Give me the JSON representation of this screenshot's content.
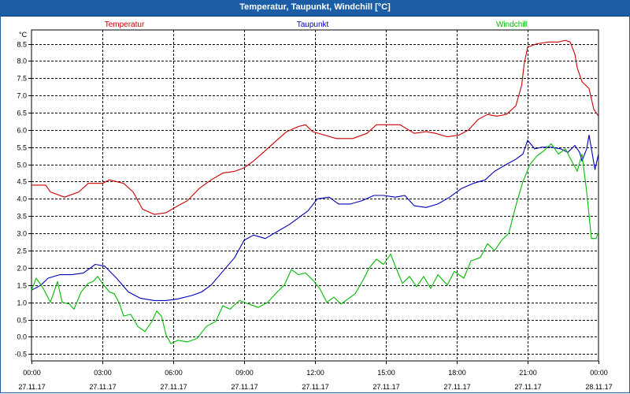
{
  "window": {
    "title": "Temperatur, Taupunkt, Windchill [°C]"
  },
  "chart_data": {
    "type": "line",
    "title": "Temperatur, Taupunkt, Windchill [°C]",
    "ylabel": "°C",
    "ylim": [
      -0.7,
      8.9
    ],
    "xlim_hours": [
      0,
      24
    ],
    "grid": true,
    "y_ticks": [
      "8.5",
      "8.0",
      "7.5",
      "7.0",
      "6.5",
      "6.0",
      "5.5",
      "5.0",
      "4.5",
      "4.0",
      "3.5",
      "3.0",
      "2.5",
      "2.0",
      "1.5",
      "1.0",
      "0.5",
      "0.0",
      "-0.5"
    ],
    "x_ticks": [
      {
        "time": "00:00",
        "date": "27.11.17"
      },
      {
        "time": "03:00",
        "date": "27.11.17"
      },
      {
        "time": "06:00",
        "date": "27.11.17"
      },
      {
        "time": "09:00",
        "date": "27.11.17"
      },
      {
        "time": "12:00",
        "date": "27.11.17"
      },
      {
        "time": "15:00",
        "date": "27.11.17"
      },
      {
        "time": "18:00",
        "date": "27.11.17"
      },
      {
        "time": "21:00",
        "date": "27.11.17"
      },
      {
        "time": "00:00",
        "date": "28.11.17"
      }
    ],
    "series": [
      {
        "name": "Temperatur",
        "color": "#cc0000",
        "points": [
          [
            0,
            4.4
          ],
          [
            0.6,
            4.4
          ],
          [
            0.8,
            4.2
          ],
          [
            1.4,
            4.05
          ],
          [
            2.0,
            4.2
          ],
          [
            2.4,
            4.45
          ],
          [
            3.0,
            4.45
          ],
          [
            3.3,
            4.55
          ],
          [
            3.9,
            4.45
          ],
          [
            4.3,
            4.2
          ],
          [
            4.7,
            3.7
          ],
          [
            5.2,
            3.55
          ],
          [
            5.7,
            3.6
          ],
          [
            6.2,
            3.8
          ],
          [
            6.6,
            3.95
          ],
          [
            7.1,
            4.3
          ],
          [
            7.6,
            4.55
          ],
          [
            8.1,
            4.75
          ],
          [
            8.6,
            4.8
          ],
          [
            9.0,
            4.9
          ],
          [
            9.4,
            5.1
          ],
          [
            9.9,
            5.4
          ],
          [
            10.3,
            5.65
          ],
          [
            10.8,
            5.95
          ],
          [
            11.3,
            6.1
          ],
          [
            11.6,
            6.15
          ],
          [
            11.9,
            5.95
          ],
          [
            12.4,
            5.85
          ],
          [
            12.9,
            5.75
          ],
          [
            13.6,
            5.75
          ],
          [
            14.2,
            5.9
          ],
          [
            14.6,
            6.15
          ],
          [
            15.0,
            6.15
          ],
          [
            15.6,
            6.15
          ],
          [
            16.2,
            5.9
          ],
          [
            16.7,
            5.95
          ],
          [
            17.1,
            5.9
          ],
          [
            17.6,
            5.8
          ],
          [
            18.1,
            5.85
          ],
          [
            18.5,
            6.0
          ],
          [
            18.9,
            6.3
          ],
          [
            19.3,
            6.45
          ],
          [
            19.7,
            6.4
          ],
          [
            20.1,
            6.45
          ],
          [
            20.5,
            6.7
          ],
          [
            20.75,
            7.3
          ],
          [
            20.85,
            7.9
          ],
          [
            21.0,
            8.4
          ],
          [
            21.4,
            8.5
          ],
          [
            21.9,
            8.55
          ],
          [
            22.3,
            8.55
          ],
          [
            22.6,
            8.6
          ],
          [
            22.8,
            8.55
          ],
          [
            23.0,
            8.2
          ],
          [
            23.1,
            7.8
          ],
          [
            23.3,
            7.4
          ],
          [
            23.6,
            7.2
          ],
          [
            23.8,
            6.6
          ],
          [
            24.0,
            6.4
          ]
        ]
      },
      {
        "name": "Taupunkt",
        "color": "#0000bb",
        "points": [
          [
            0,
            1.35
          ],
          [
            0.4,
            1.5
          ],
          [
            0.7,
            1.7
          ],
          [
            1.2,
            1.8
          ],
          [
            1.7,
            1.8
          ],
          [
            2.2,
            1.85
          ],
          [
            2.7,
            2.1
          ],
          [
            3.1,
            2.05
          ],
          [
            3.6,
            1.7
          ],
          [
            4.1,
            1.3
          ],
          [
            4.6,
            1.12
          ],
          [
            5.2,
            1.05
          ],
          [
            5.7,
            1.05
          ],
          [
            6.2,
            1.1
          ],
          [
            6.8,
            1.2
          ],
          [
            7.2,
            1.3
          ],
          [
            7.6,
            1.5
          ],
          [
            8.1,
            1.9
          ],
          [
            8.6,
            2.3
          ],
          [
            9.0,
            2.8
          ],
          [
            9.4,
            2.95
          ],
          [
            9.9,
            2.85
          ],
          [
            10.4,
            3.05
          ],
          [
            10.9,
            3.25
          ],
          [
            11.3,
            3.45
          ],
          [
            11.7,
            3.65
          ],
          [
            12.1,
            4.0
          ],
          [
            12.6,
            4.05
          ],
          [
            13.0,
            3.85
          ],
          [
            13.5,
            3.85
          ],
          [
            14.0,
            3.95
          ],
          [
            14.5,
            4.1
          ],
          [
            14.9,
            4.1
          ],
          [
            15.4,
            4.05
          ],
          [
            15.8,
            4.1
          ],
          [
            16.2,
            3.8
          ],
          [
            16.7,
            3.75
          ],
          [
            17.2,
            3.85
          ],
          [
            17.7,
            4.05
          ],
          [
            18.2,
            4.3
          ],
          [
            18.7,
            4.45
          ],
          [
            19.2,
            4.55
          ],
          [
            19.6,
            4.8
          ],
          [
            20.1,
            5.0
          ],
          [
            20.5,
            5.15
          ],
          [
            20.8,
            5.3
          ],
          [
            21.0,
            5.7
          ],
          [
            21.3,
            5.45
          ],
          [
            21.6,
            5.5
          ],
          [
            22.0,
            5.5
          ],
          [
            22.4,
            5.45
          ],
          [
            22.7,
            5.35
          ],
          [
            23.0,
            5.55
          ],
          [
            23.2,
            5.35
          ],
          [
            23.3,
            5.1
          ],
          [
            23.5,
            5.45
          ],
          [
            23.6,
            5.85
          ],
          [
            23.85,
            4.85
          ],
          [
            24.0,
            5.3
          ]
        ]
      },
      {
        "name": "Windchill",
        "color": "#00bb00",
        "points": [
          [
            0,
            1.35
          ],
          [
            0.2,
            1.7
          ],
          [
            0.5,
            1.4
          ],
          [
            0.8,
            1.0
          ],
          [
            1.1,
            1.6
          ],
          [
            1.3,
            1.0
          ],
          [
            1.6,
            0.95
          ],
          [
            1.8,
            0.8
          ],
          [
            2.1,
            1.3
          ],
          [
            2.4,
            1.55
          ],
          [
            2.6,
            1.6
          ],
          [
            2.8,
            1.75
          ],
          [
            3.0,
            1.55
          ],
          [
            3.3,
            1.3
          ],
          [
            3.5,
            1.25
          ],
          [
            3.7,
            1.0
          ],
          [
            3.9,
            0.6
          ],
          [
            4.2,
            0.65
          ],
          [
            4.5,
            0.3
          ],
          [
            4.8,
            0.15
          ],
          [
            5.1,
            0.45
          ],
          [
            5.3,
            0.75
          ],
          [
            5.5,
            0.6
          ],
          [
            5.7,
            0.05
          ],
          [
            5.9,
            -0.2
          ],
          [
            6.2,
            -0.1
          ],
          [
            6.6,
            -0.15
          ],
          [
            7.0,
            -0.05
          ],
          [
            7.4,
            0.3
          ],
          [
            7.8,
            0.45
          ],
          [
            8.1,
            0.9
          ],
          [
            8.4,
            0.8
          ],
          [
            8.8,
            1.05
          ],
          [
            9.2,
            0.95
          ],
          [
            9.6,
            0.85
          ],
          [
            10.0,
            1.0
          ],
          [
            10.4,
            1.3
          ],
          [
            10.7,
            1.5
          ],
          [
            11.0,
            1.95
          ],
          [
            11.3,
            1.8
          ],
          [
            11.6,
            1.85
          ],
          [
            11.9,
            1.65
          ],
          [
            12.2,
            1.4
          ],
          [
            12.5,
            1.0
          ],
          [
            12.8,
            1.15
          ],
          [
            13.1,
            0.95
          ],
          [
            13.4,
            1.1
          ],
          [
            13.7,
            1.25
          ],
          [
            14.0,
            1.6
          ],
          [
            14.3,
            2.0
          ],
          [
            14.6,
            2.25
          ],
          [
            14.9,
            2.1
          ],
          [
            15.2,
            2.4
          ],
          [
            15.4,
            2.05
          ],
          [
            15.7,
            1.55
          ],
          [
            16.0,
            1.75
          ],
          [
            16.3,
            1.45
          ],
          [
            16.6,
            1.75
          ],
          [
            16.9,
            1.4
          ],
          [
            17.2,
            1.8
          ],
          [
            17.6,
            1.5
          ],
          [
            17.9,
            1.9
          ],
          [
            18.3,
            1.7
          ],
          [
            18.6,
            2.2
          ],
          [
            19.0,
            2.3
          ],
          [
            19.3,
            2.7
          ],
          [
            19.6,
            2.5
          ],
          [
            19.9,
            2.8
          ],
          [
            20.2,
            3.0
          ],
          [
            20.5,
            3.8
          ],
          [
            20.8,
            4.5
          ],
          [
            21.1,
            5.0
          ],
          [
            21.4,
            5.25
          ],
          [
            21.7,
            5.4
          ],
          [
            22.0,
            5.6
          ],
          [
            22.3,
            5.3
          ],
          [
            22.6,
            5.45
          ],
          [
            22.9,
            5.05
          ],
          [
            23.1,
            4.8
          ],
          [
            23.3,
            5.3
          ],
          [
            23.5,
            4.2
          ],
          [
            23.7,
            2.85
          ],
          [
            23.9,
            2.85
          ],
          [
            24.0,
            3.05
          ]
        ]
      }
    ]
  }
}
